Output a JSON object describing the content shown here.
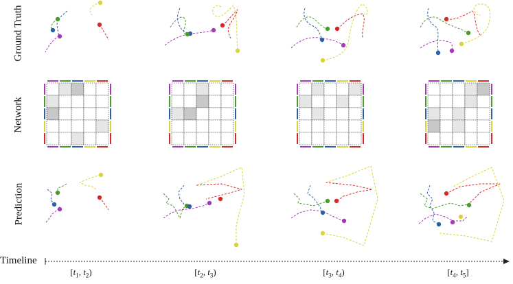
{
  "row_labels": [
    "Ground Truth",
    "Network",
    "Prediction"
  ],
  "timeline": {
    "label": "Timeline",
    "intervals": [
      "[t1, t2)",
      "[t2, t3)",
      "[t3, t4)",
      "[t4, t5]"
    ]
  },
  "colors": {
    "blue": "#2f5ea8",
    "green": "#4a9a2a",
    "purple": "#a13bb5",
    "red": "#d62a2a",
    "yellow": "#d8d43a",
    "grid_line": "#222222",
    "cell_light": "#e6e6e6",
    "cell_mid": "#c8c8c8",
    "cell_dark": "#9a9a9a"
  },
  "matrix_edge_colors": [
    "purple",
    "green",
    "blue",
    "yellow",
    "red"
  ],
  "networks": [
    {
      "interval": "[t1, t2)",
      "cells": [
        [
          0,
          1,
          2,
          0,
          0
        ],
        [
          1,
          0,
          0,
          0,
          0
        ],
        [
          2,
          0,
          0,
          0,
          0
        ],
        [
          0,
          0,
          0,
          0,
          1
        ],
        [
          0,
          0,
          1,
          0,
          0
        ]
      ]
    },
    {
      "interval": "[t2, t3)",
      "cells": [
        [
          0,
          0,
          1,
          0,
          0
        ],
        [
          0,
          0,
          2,
          0,
          0
        ],
        [
          1,
          2,
          0,
          0,
          0
        ],
        [
          0,
          0,
          0,
          0,
          0
        ],
        [
          0,
          0,
          0,
          0,
          0
        ]
      ]
    },
    {
      "interval": "[t3, t4)",
      "cells": [
        [
          0,
          1,
          0,
          0,
          1
        ],
        [
          1,
          0,
          0,
          1,
          0
        ],
        [
          0,
          1,
          0,
          0,
          0
        ],
        [
          0,
          0,
          0,
          0,
          0
        ],
        [
          0,
          0,
          0,
          0,
          0
        ]
      ]
    },
    {
      "interval": "[t4, t5]",
      "cells": [
        [
          0,
          0,
          0,
          1,
          2
        ],
        [
          0,
          0,
          0,
          1,
          0
        ],
        [
          1,
          0,
          1,
          0,
          0
        ],
        [
          2,
          0,
          1,
          0,
          0
        ],
        [
          0,
          0,
          0,
          0,
          0
        ]
      ]
    }
  ]
}
